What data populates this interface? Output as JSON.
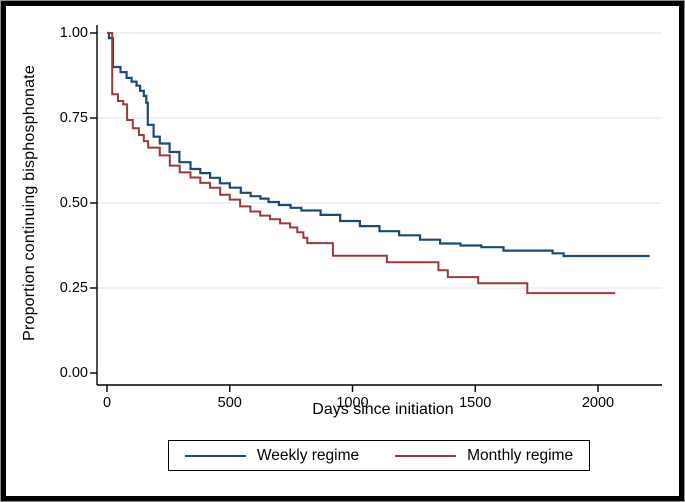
{
  "figure": {
    "frame_border_color": "#000000",
    "background_color": "#ffffff"
  },
  "chart_data": {
    "type": "line",
    "subtype": "kaplan-meier-step",
    "title": "",
    "xlabel": "Days since initiation",
    "ylabel": "Proportion continuing bisphosphonate",
    "xlim": [
      0,
      2260
    ],
    "ylim": [
      0.0,
      1.0
    ],
    "xtick_values": [
      0,
      500,
      1000,
      1500,
      2000
    ],
    "xtick_labels": [
      "0",
      "500",
      "1000",
      "1500",
      "2000"
    ],
    "ytick_values": [
      0.0,
      0.25,
      0.5,
      0.75,
      1.0
    ],
    "ytick_labels": [
      "0.00",
      "0.25",
      "0.50",
      "0.75",
      "1.00"
    ],
    "grid": "horizontal",
    "gridline_color": "#dfeaf3",
    "axis_color": "#000000",
    "legend_position": "bottom",
    "series": [
      {
        "name": "Weekly regime",
        "color": "#1d4a74",
        "end_day": 2210,
        "points": [
          [
            0,
            1.0
          ],
          [
            8,
            0.985
          ],
          [
            24,
            0.9
          ],
          [
            55,
            0.885
          ],
          [
            80,
            0.868
          ],
          [
            100,
            0.857
          ],
          [
            120,
            0.845
          ],
          [
            135,
            0.83
          ],
          [
            150,
            0.815
          ],
          [
            160,
            0.795
          ],
          [
            166,
            0.73
          ],
          [
            190,
            0.695
          ],
          [
            215,
            0.675
          ],
          [
            255,
            0.65
          ],
          [
            295,
            0.62
          ],
          [
            340,
            0.6
          ],
          [
            380,
            0.588
          ],
          [
            420,
            0.574
          ],
          [
            460,
            0.558
          ],
          [
            500,
            0.545
          ],
          [
            545,
            0.53
          ],
          [
            585,
            0.52
          ],
          [
            625,
            0.513
          ],
          [
            658,
            0.503
          ],
          [
            700,
            0.494
          ],
          [
            748,
            0.486
          ],
          [
            792,
            0.478
          ],
          [
            870,
            0.465
          ],
          [
            950,
            0.447
          ],
          [
            1030,
            0.432
          ],
          [
            1110,
            0.417
          ],
          [
            1190,
            0.405
          ],
          [
            1275,
            0.392
          ],
          [
            1357,
            0.381
          ],
          [
            1440,
            0.375
          ],
          [
            1525,
            0.37
          ],
          [
            1615,
            0.36
          ],
          [
            1815,
            0.352
          ],
          [
            1860,
            0.344
          ]
        ]
      },
      {
        "name": "Monthly regime",
        "color": "#9c383e",
        "end_day": 2070,
        "points": [
          [
            0,
            1.0
          ],
          [
            21,
            0.82
          ],
          [
            45,
            0.8
          ],
          [
            66,
            0.79
          ],
          [
            82,
            0.744
          ],
          [
            105,
            0.72
          ],
          [
            130,
            0.7
          ],
          [
            150,
            0.682
          ],
          [
            168,
            0.663
          ],
          [
            215,
            0.64
          ],
          [
            256,
            0.61
          ],
          [
            296,
            0.59
          ],
          [
            340,
            0.575
          ],
          [
            380,
            0.559
          ],
          [
            420,
            0.545
          ],
          [
            461,
            0.524
          ],
          [
            500,
            0.51
          ],
          [
            542,
            0.49
          ],
          [
            584,
            0.475
          ],
          [
            624,
            0.463
          ],
          [
            664,
            0.452
          ],
          [
            705,
            0.44
          ],
          [
            746,
            0.428
          ],
          [
            775,
            0.414
          ],
          [
            800,
            0.398
          ],
          [
            816,
            0.382
          ],
          [
            920,
            0.345
          ],
          [
            1140,
            0.326
          ],
          [
            1350,
            0.302
          ],
          [
            1388,
            0.282
          ],
          [
            1512,
            0.264
          ],
          [
            1712,
            0.235
          ]
        ]
      }
    ]
  }
}
